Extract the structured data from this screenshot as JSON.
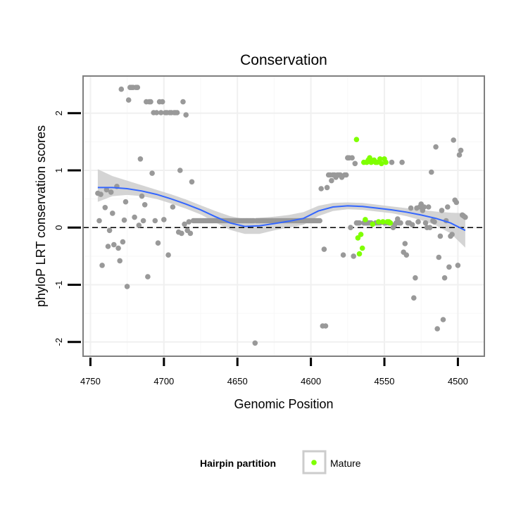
{
  "colors": {
    "background_panel": "#ffffff",
    "panel_border": "#7f7f7f",
    "grid_major": "#f0f0f0",
    "grid_minor": "#f7f7f7",
    "points_other": "#999999",
    "points_mature": "#7fff00",
    "smooth_line": "#3366ff",
    "smooth_ribbon": "#cccccc",
    "zero_line": "#000000"
  },
  "chart_data": {
    "type": "scatter",
    "title": "Conservation",
    "xlabel": "Genomic Position",
    "ylabel": "phyloP LRT conservation scores",
    "xlim": [
      4755,
      4482
    ],
    "ylim": [
      -2.25,
      2.65
    ],
    "x_reversed": true,
    "x_ticks": [
      4750,
      4700,
      4650,
      4600,
      4550,
      4500
    ],
    "y_ticks": [
      -2,
      -1,
      0,
      1,
      2
    ],
    "x_tick_labels": [
      "4750",
      "4700",
      "4650",
      "4600",
      "4550",
      "4500"
    ],
    "y_tick_labels": [
      "-2",
      "-1",
      "0",
      "1",
      "2"
    ],
    "hline": 0,
    "legend": {
      "title": "Hairpin partition",
      "entries": [
        {
          "label": "Mature",
          "color": "#7fff00"
        }
      ],
      "position": "bottom"
    },
    "series": [
      {
        "name": "Other",
        "color": "#999999",
        "points": [
          [
            4745,
            0.6
          ],
          [
            4743,
            0.58
          ],
          [
            4744,
            0.12
          ],
          [
            4742,
            -0.66
          ],
          [
            4740,
            0.35
          ],
          [
            4739,
            0.66
          ],
          [
            4738,
            -0.33
          ],
          [
            4737,
            -0.05
          ],
          [
            4736,
            0.62
          ],
          [
            4735,
            0.25
          ],
          [
            4734,
            -0.3
          ],
          [
            4732,
            0.72
          ],
          [
            4731,
            -0.36
          ],
          [
            4730,
            -0.58
          ],
          [
            4729,
            2.42
          ],
          [
            4728,
            -0.25
          ],
          [
            4727,
            0.13
          ],
          [
            4726,
            0.45
          ],
          [
            4725,
            -1.03
          ],
          [
            4724,
            2.23
          ],
          [
            4723,
            2.45
          ],
          [
            4722,
            2.45
          ],
          [
            4721,
            2.45
          ],
          [
            4720,
            0.18
          ],
          [
            4719,
            2.45
          ],
          [
            4718,
            2.45
          ],
          [
            4717,
            0.04
          ],
          [
            4716,
            1.2
          ],
          [
            4715,
            0.55
          ],
          [
            4714,
            0.12
          ],
          [
            4713,
            0.4
          ],
          [
            4712,
            2.2
          ],
          [
            4711,
            -0.86
          ],
          [
            4710,
            2.2
          ],
          [
            4709,
            2.2
          ],
          [
            4708,
            0.95
          ],
          [
            4707,
            2.01
          ],
          [
            4706,
            0.12
          ],
          [
            4705,
            2.01
          ],
          [
            4704,
            -0.27
          ],
          [
            4703,
            2.2
          ],
          [
            4702,
            2.01
          ],
          [
            4701,
            2.2
          ],
          [
            4700,
            0.14
          ],
          [
            4699,
            2.01
          ],
          [
            4698,
            2.01
          ],
          [
            4697,
            -0.48
          ],
          [
            4696,
            2.01
          ],
          [
            4695,
            2.01
          ],
          [
            4694,
            0.36
          ],
          [
            4693,
            2.01
          ],
          [
            4692,
            2.01
          ],
          [
            4691,
            2.01
          ],
          [
            4690,
            -0.08
          ],
          [
            4689,
            1.0
          ],
          [
            4688,
            -0.1
          ],
          [
            4687,
            2.2
          ],
          [
            4686,
            0.06
          ],
          [
            4685,
            1.97
          ],
          [
            4684,
            -0.05
          ],
          [
            4683,
            0.1
          ],
          [
            4682,
            -0.1
          ],
          [
            4681,
            0.8
          ],
          [
            4680,
            0.12
          ],
          [
            4679,
            0.12
          ],
          [
            4678,
            0.12
          ],
          [
            4677,
            0.12
          ],
          [
            4676,
            0.12
          ],
          [
            4675,
            0.12
          ],
          [
            4674,
            0.12
          ],
          [
            4673,
            0.12
          ],
          [
            4672,
            0.12
          ],
          [
            4671,
            0.12
          ],
          [
            4670,
            0.12
          ],
          [
            4669,
            0.12
          ],
          [
            4668,
            0.12
          ],
          [
            4667,
            0.12
          ],
          [
            4666,
            0.12
          ],
          [
            4665,
            0.12
          ],
          [
            4664,
            0.12
          ],
          [
            4663,
            0.12
          ],
          [
            4662,
            0.12
          ],
          [
            4661,
            0.12
          ],
          [
            4660,
            0.12
          ],
          [
            4659,
            0.12
          ],
          [
            4658,
            0.12
          ],
          [
            4657,
            0.12
          ],
          [
            4656,
            0.12
          ],
          [
            4655,
            0.12
          ],
          [
            4654,
            0.12
          ],
          [
            4653,
            0.12
          ],
          [
            4652,
            0.12
          ],
          [
            4651,
            0.12
          ],
          [
            4650,
            0.12
          ],
          [
            4649,
            0.12
          ],
          [
            4648,
            0.12
          ],
          [
            4647,
            0.12
          ],
          [
            4646,
            0.12
          ],
          [
            4645,
            0.12
          ],
          [
            4644,
            0.12
          ],
          [
            4643,
            0.12
          ],
          [
            4642,
            0.12
          ],
          [
            4641,
            0.12
          ],
          [
            4640,
            0.12
          ],
          [
            4639,
            0.12
          ],
          [
            4638,
            -2.02
          ],
          [
            4637,
            0.12
          ],
          [
            4636,
            0.12
          ],
          [
            4635,
            0.12
          ],
          [
            4634,
            0.12
          ],
          [
            4633,
            0.12
          ],
          [
            4632,
            0.12
          ],
          [
            4631,
            0.12
          ],
          [
            4630,
            0.12
          ],
          [
            4629,
            0.12
          ],
          [
            4628,
            0.12
          ],
          [
            4627,
            0.12
          ],
          [
            4626,
            0.12
          ],
          [
            4625,
            0.12
          ],
          [
            4624,
            0.12
          ],
          [
            4623,
            0.12
          ],
          [
            4622,
            0.12
          ],
          [
            4621,
            0.12
          ],
          [
            4620,
            0.12
          ],
          [
            4619,
            0.12
          ],
          [
            4618,
            0.12
          ],
          [
            4617,
            0.12
          ],
          [
            4616,
            0.12
          ],
          [
            4615,
            0.12
          ],
          [
            4614,
            0.12
          ],
          [
            4613,
            0.12
          ],
          [
            4612,
            0.12
          ],
          [
            4611,
            0.12
          ],
          [
            4610,
            0.12
          ],
          [
            4609,
            0.12
          ],
          [
            4608,
            0.12
          ],
          [
            4607,
            0.12
          ],
          [
            4606,
            0.12
          ],
          [
            4605,
            0.12
          ],
          [
            4604,
            0.12
          ],
          [
            4603,
            0.12
          ],
          [
            4602,
            0.12
          ],
          [
            4601,
            0.12
          ],
          [
            4600,
            0.12
          ],
          [
            4599,
            0.12
          ],
          [
            4598,
            0.12
          ],
          [
            4597,
            0.12
          ],
          [
            4596,
            0.12
          ],
          [
            4595,
            0.12
          ],
          [
            4594,
            0.12
          ],
          [
            4593,
            0.68
          ],
          [
            4592,
            -1.72
          ],
          [
            4591,
            -0.38
          ],
          [
            4590,
            -1.72
          ],
          [
            4589,
            0.7
          ],
          [
            4588,
            0.92
          ],
          [
            4587,
            0.92
          ],
          [
            4586,
            0.82
          ],
          [
            4585,
            0.92
          ],
          [
            4584,
            0.92
          ],
          [
            4583,
            0.88
          ],
          [
            4582,
            0.92
          ],
          [
            4581,
            0.92
          ],
          [
            4580,
            0.92
          ],
          [
            4579,
            0.88
          ],
          [
            4578,
            -0.48
          ],
          [
            4577,
            0.92
          ],
          [
            4576,
            0.92
          ],
          [
            4575,
            1.22
          ],
          [
            4574,
            1.22
          ],
          [
            4573,
            0.0
          ],
          [
            4572,
            1.22
          ],
          [
            4571,
            -0.5
          ],
          [
            4570,
            1.12
          ],
          [
            4569,
            0.08
          ],
          [
            4568,
            0.08
          ],
          [
            4567,
            0.08
          ],
          [
            4564,
            0.08
          ],
          [
            4563,
            0.08
          ],
          [
            4562,
            0.08
          ],
          [
            4561,
            0.08
          ],
          [
            4560,
            0.08
          ],
          [
            4559,
            0.08
          ],
          [
            4556,
            0.08
          ],
          [
            4555,
            0.08
          ],
          [
            4554,
            0.08
          ],
          [
            4553,
            0.08
          ],
          [
            4550,
            0.08
          ],
          [
            4549,
            0.08
          ],
          [
            4547,
            0.08
          ],
          [
            4546,
            0.08
          ],
          [
            4545,
            1.14
          ],
          [
            4544,
            0.0
          ],
          [
            4543,
            0.05
          ],
          [
            4542,
            0.08
          ],
          [
            4541,
            0.15
          ],
          [
            4540,
            0.08
          ],
          [
            4539,
            0.08
          ],
          [
            4538,
            1.14
          ],
          [
            4537,
            -0.43
          ],
          [
            4536,
            -0.28
          ],
          [
            4535,
            -0.48
          ],
          [
            4534,
            0.08
          ],
          [
            4533,
            0.08
          ],
          [
            4532,
            0.34
          ],
          [
            4531,
            0.05
          ],
          [
            4530,
            -1.23
          ],
          [
            4529,
            -0.88
          ],
          [
            4528,
            0.34
          ],
          [
            4527,
            0.1
          ],
          [
            4526,
            0.36
          ],
          [
            4525,
            0.41
          ],
          [
            4524,
            0.3
          ],
          [
            4523,
            0.36
          ],
          [
            4522,
            0.08
          ],
          [
            4521,
            0.0
          ],
          [
            4520,
            0.36
          ],
          [
            4519,
            0.0
          ],
          [
            4518,
            0.97
          ],
          [
            4517,
            0.12
          ],
          [
            4516,
            0.1
          ],
          [
            4515,
            1.41
          ],
          [
            4514,
            -1.77
          ],
          [
            4513,
            -0.52
          ],
          [
            4512,
            -0.15
          ],
          [
            4511,
            0.3
          ],
          [
            4510,
            -1.61
          ],
          [
            4509,
            -0.88
          ],
          [
            4508,
            0.12
          ],
          [
            4507,
            0.36
          ],
          [
            4506,
            -0.69
          ],
          [
            4505,
            -0.15
          ],
          [
            4504,
            -0.12
          ],
          [
            4503,
            1.53
          ],
          [
            4502,
            0.48
          ],
          [
            4501,
            0.44
          ],
          [
            4500,
            -0.66
          ],
          [
            4499,
            1.27
          ],
          [
            4498,
            1.35
          ],
          [
            4497,
            0.22
          ],
          [
            4496,
            0.2
          ],
          [
            4495,
            0.18
          ]
        ]
      },
      {
        "name": "Mature",
        "color": "#7fff00",
        "points": [
          [
            4569,
            1.54
          ],
          [
            4568,
            -0.18
          ],
          [
            4567,
            -0.46
          ],
          [
            4566,
            -0.12
          ],
          [
            4565,
            -0.36
          ],
          [
            4564,
            1.14
          ],
          [
            4563,
            0.14
          ],
          [
            4562,
            1.14
          ],
          [
            4561,
            1.18
          ],
          [
            4560,
            1.22
          ],
          [
            4559,
            1.14
          ],
          [
            4558,
            0.06
          ],
          [
            4557,
            1.18
          ],
          [
            4556,
            1.14
          ],
          [
            4555,
            1.14
          ],
          [
            4554,
            0.1
          ],
          [
            4553,
            1.2
          ],
          [
            4552,
            1.12
          ],
          [
            4551,
            0.1
          ],
          [
            4550,
            1.2
          ],
          [
            4549,
            1.14
          ],
          [
            4548,
            0.1
          ],
          [
            4547,
            0.1
          ],
          [
            4546,
            0.08
          ]
        ]
      }
    ],
    "smooth": {
      "method": "loess",
      "x": [
        4745,
        4735,
        4725,
        4715,
        4705,
        4695,
        4685,
        4675,
        4665,
        4655,
        4645,
        4635,
        4625,
        4615,
        4605,
        4595,
        4585,
        4575,
        4565,
        4555,
        4545,
        4535,
        4525,
        4515,
        4505,
        4495
      ],
      "y": [
        0.7,
        0.7,
        0.68,
        0.64,
        0.58,
        0.5,
        0.41,
        0.31,
        0.19,
        0.08,
        0.02,
        0.03,
        0.07,
        0.11,
        0.16,
        0.29,
        0.36,
        0.38,
        0.37,
        0.34,
        0.31,
        0.27,
        0.22,
        0.16,
        0.08,
        -0.05
      ],
      "lower": [
        0.45,
        0.55,
        0.57,
        0.55,
        0.5,
        0.42,
        0.33,
        0.23,
        0.09,
        -0.04,
        -0.11,
        -0.11,
        -0.05,
        0.0,
        0.05,
        0.2,
        0.29,
        0.32,
        0.31,
        0.28,
        0.25,
        0.2,
        0.13,
        0.04,
        -0.1,
        -0.35
      ],
      "upper": [
        1.02,
        0.9,
        0.82,
        0.74,
        0.66,
        0.58,
        0.49,
        0.39,
        0.29,
        0.2,
        0.15,
        0.17,
        0.19,
        0.22,
        0.27,
        0.38,
        0.43,
        0.44,
        0.43,
        0.4,
        0.37,
        0.34,
        0.31,
        0.28,
        0.26,
        0.25
      ]
    }
  }
}
